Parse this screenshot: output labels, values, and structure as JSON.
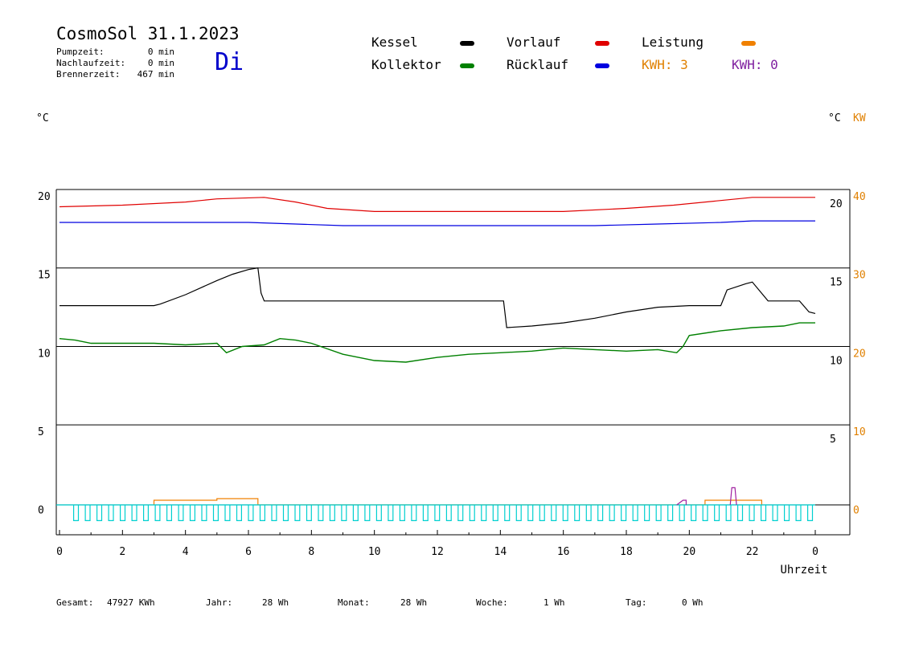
{
  "header": {
    "title": "CosmoSol 31.1.2023",
    "stats": [
      {
        "label": "Pumpzeit:",
        "value": "0 min"
      },
      {
        "label": "Nachlaufzeit:",
        "value": "0 min"
      },
      {
        "label": "Brennerzeit:",
        "value": "467 min"
      }
    ],
    "weekday": "Di"
  },
  "legend": {
    "kessel": {
      "label": "Kessel",
      "color": "#000000"
    },
    "kollektor": {
      "label": "Kollektor",
      "color": "#008000"
    },
    "vorlauf": {
      "label": "Vorlauf",
      "color": "#e00000"
    },
    "ruecklauf": {
      "label": "Rücklauf",
      "color": "#0000e0"
    },
    "leistung": {
      "label": "Leistung",
      "color": "#f08000"
    },
    "kwh1": "KWH: 3",
    "kwh2": "KWH: 0",
    "kwh1_color": "#e08000",
    "kwh2_color": "#8020a0"
  },
  "units": {
    "left": "°C",
    "right_c": "°C",
    "right_kw": "KW"
  },
  "footer": {
    "gesamt_label": "Gesamt:",
    "gesamt_value": "47927 KWh",
    "jahr_label": "Jahr:",
    "jahr_value": "28 Wh",
    "monat_label": "Monat:",
    "monat_value": "28 Wh",
    "woche_label": "Woche:",
    "woche_value": "1 Wh",
    "tag_label": "Tag:",
    "tag_value": "0 Wh"
  },
  "chart_data": {
    "type": "line",
    "xlabel": "Uhrzeit",
    "x_ticks": [
      "0",
      "2",
      "4",
      "6",
      "8",
      "10",
      "12",
      "14",
      "16",
      "18",
      "20",
      "22",
      "0"
    ],
    "x_range": [
      0,
      24
    ],
    "y_left_ticks": [
      20,
      15,
      10,
      5,
      0
    ],
    "y_left_range": [
      -1.6,
      20.4
    ],
    "y_right_c_ticks": [
      20,
      15,
      10,
      5
    ],
    "y_right_kw_ticks": [
      40,
      30,
      20,
      10,
      0
    ],
    "grid_lines_y": [
      20.4,
      15.4,
      10.4,
      5.4
    ],
    "series": [
      {
        "name": "Vorlauf",
        "color": "#e00000",
        "points": [
          [
            0,
            19.3
          ],
          [
            2,
            19.4
          ],
          [
            4,
            19.6
          ],
          [
            5,
            19.8
          ],
          [
            6.5,
            19.9
          ],
          [
            7.5,
            19.6
          ],
          [
            8.5,
            19.2
          ],
          [
            10,
            19.0
          ],
          [
            12,
            19.0
          ],
          [
            14,
            19.0
          ],
          [
            16,
            19.0
          ],
          [
            18,
            19.2
          ],
          [
            19.5,
            19.4
          ],
          [
            21,
            19.7
          ],
          [
            22,
            19.9
          ],
          [
            24,
            19.9
          ]
        ]
      },
      {
        "name": "Rücklauf",
        "color": "#0000e0",
        "points": [
          [
            0,
            18.3
          ],
          [
            4,
            18.3
          ],
          [
            6,
            18.3
          ],
          [
            7.5,
            18.2
          ],
          [
            9,
            18.1
          ],
          [
            12,
            18.1
          ],
          [
            14,
            18.1
          ],
          [
            17,
            18.1
          ],
          [
            19,
            18.2
          ],
          [
            21,
            18.3
          ],
          [
            22,
            18.4
          ],
          [
            24,
            18.4
          ]
        ]
      },
      {
        "name": "Kessel",
        "color": "#000000",
        "points": [
          [
            0,
            13.0
          ],
          [
            3.0,
            13.0
          ],
          [
            3.2,
            13.1
          ],
          [
            4,
            13.7
          ],
          [
            5,
            14.6
          ],
          [
            5.5,
            15.0
          ],
          [
            6,
            15.3
          ],
          [
            6.3,
            15.4
          ],
          [
            6.4,
            13.8
          ],
          [
            6.5,
            13.3
          ],
          [
            8,
            13.3
          ],
          [
            10,
            13.3
          ],
          [
            12,
            13.3
          ],
          [
            14.1,
            13.3
          ],
          [
            14.2,
            11.6
          ],
          [
            15,
            11.7
          ],
          [
            16,
            11.9
          ],
          [
            17,
            12.2
          ],
          [
            18,
            12.6
          ],
          [
            19,
            12.9
          ],
          [
            20,
            13.0
          ],
          [
            21,
            13.0
          ],
          [
            21.2,
            14.0
          ],
          [
            21.8,
            14.4
          ],
          [
            22,
            14.5
          ],
          [
            22.5,
            13.3
          ],
          [
            23.5,
            13.3
          ],
          [
            23.8,
            12.6
          ],
          [
            24,
            12.5
          ]
        ]
      },
      {
        "name": "Kollektor",
        "color": "#008000",
        "points": [
          [
            0,
            10.9
          ],
          [
            0.5,
            10.8
          ],
          [
            1,
            10.6
          ],
          [
            2,
            10.6
          ],
          [
            3,
            10.6
          ],
          [
            4,
            10.5
          ],
          [
            5,
            10.6
          ],
          [
            5.3,
            10.0
          ],
          [
            5.8,
            10.4
          ],
          [
            6.5,
            10.5
          ],
          [
            7,
            10.9
          ],
          [
            7.5,
            10.8
          ],
          [
            8,
            10.6
          ],
          [
            9,
            9.9
          ],
          [
            10,
            9.5
          ],
          [
            11,
            9.4
          ],
          [
            12,
            9.7
          ],
          [
            13,
            9.9
          ],
          [
            14,
            10.0
          ],
          [
            15,
            10.1
          ],
          [
            16,
            10.3
          ],
          [
            17,
            10.2
          ],
          [
            18,
            10.1
          ],
          [
            19,
            10.2
          ],
          [
            19.6,
            10.0
          ],
          [
            19.8,
            10.4
          ],
          [
            20,
            11.1
          ],
          [
            21,
            11.4
          ],
          [
            22,
            11.6
          ],
          [
            23,
            11.7
          ],
          [
            23.5,
            11.9
          ],
          [
            24,
            11.9
          ]
        ]
      },
      {
        "name": "Leistung",
        "color": "#f08000",
        "points": [
          [
            3,
            0.3
          ],
          [
            3.0,
            0.6
          ],
          [
            5,
            0.6
          ],
          [
            5,
            0.7
          ],
          [
            6.3,
            0.7
          ],
          [
            6.3,
            0.3
          ],
          [
            20.5,
            0.3
          ],
          [
            20.5,
            0.6
          ],
          [
            22.3,
            0.6
          ],
          [
            22.3,
            0.3
          ]
        ]
      }
    ]
  }
}
